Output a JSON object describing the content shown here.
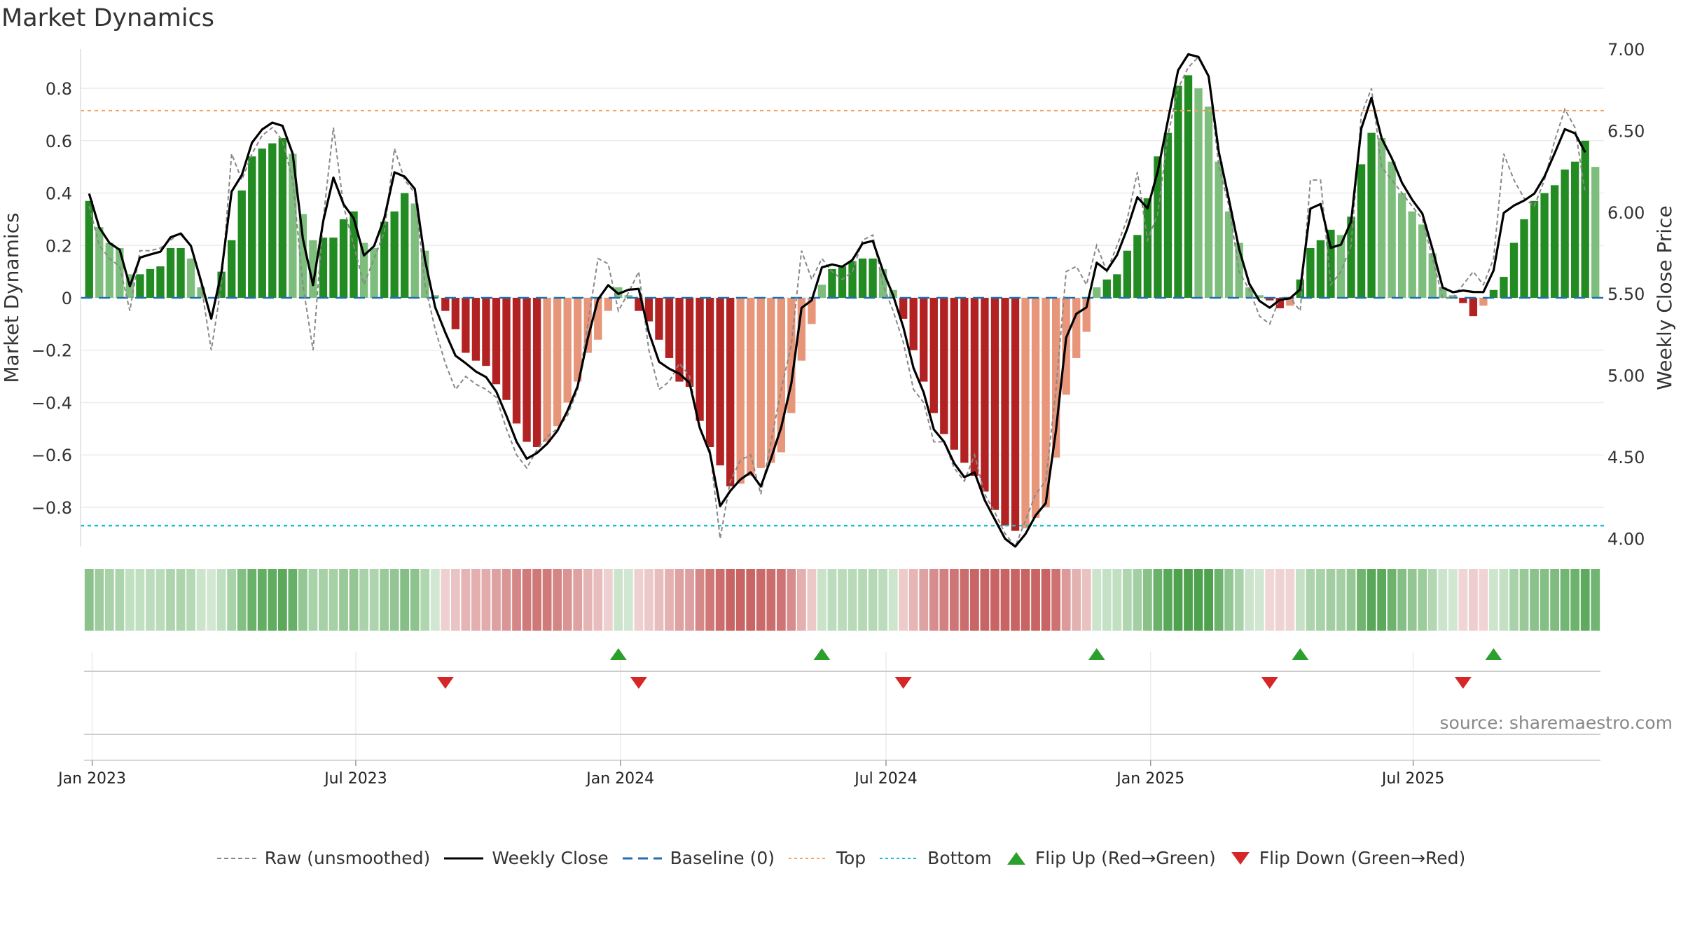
{
  "title": "Market Dynamics",
  "source": "source: sharemaestro.com",
  "colors": {
    "strong_green": "#228B22",
    "light_green": "#7DBE7D",
    "strong_red": "#B22222",
    "light_red": "#E8967A",
    "close_line": "#000000",
    "raw_line": "#888888",
    "baseline": "#1f6fb2",
    "top": "#f4a261",
    "bottom": "#17becf",
    "flip_up": "#2ca02c",
    "flip_down": "#d62728"
  },
  "legend": [
    {
      "label": "Raw (unsmoothed)",
      "icon": "dashed-gray-line"
    },
    {
      "label": "Weekly Close",
      "icon": "solid-black-line"
    },
    {
      "label": "Baseline (0)",
      "icon": "dashed-blue-line"
    },
    {
      "label": "Top",
      "icon": "dotted-orange-line"
    },
    {
      "label": "Bottom",
      "icon": "dotted-cyan-line"
    },
    {
      "label": "Flip Up (Red→Green)",
      "icon": "green-up-triangle"
    },
    {
      "label": "Flip Down (Green→Red)",
      "icon": "red-down-triangle"
    }
  ],
  "chart_data": {
    "type": "bar",
    "ylabel": "Market Dynamics",
    "y2label": "Weekly Close Price",
    "ylim": [
      -0.95,
      0.95
    ],
    "y2lim": [
      3.95,
      7.0
    ],
    "yticks": [
      "0.8",
      "0.6",
      "0.4",
      "0.2",
      "0",
      "−0.2",
      "−0.4",
      "−0.6",
      "−0.8"
    ],
    "y2ticks": [
      "7.00",
      "6.50",
      "6.00",
      "5.50",
      "5.00",
      "4.50",
      "4.00"
    ],
    "xticks": [
      "Jan 2023",
      "Jul 2023",
      "Jan 2024",
      "Jul 2024",
      "Jan 2025",
      "Jul 2025"
    ],
    "top_level": 0.715,
    "bottom_level": -0.87,
    "baseline": 0,
    "values": [
      0.37,
      0.27,
      0.21,
      0.19,
      0.09,
      0.09,
      0.11,
      0.12,
      0.19,
      0.19,
      0.15,
      0.04,
      0.0,
      0.1,
      0.22,
      0.41,
      0.54,
      0.57,
      0.59,
      0.61,
      0.55,
      0.32,
      0.22,
      0.23,
      0.23,
      0.3,
      0.33,
      0.21,
      0.19,
      0.29,
      0.33,
      0.4,
      0.36,
      0.18,
      0.01,
      -0.05,
      -0.12,
      -0.21,
      -0.24,
      -0.26,
      -0.33,
      -0.39,
      -0.48,
      -0.55,
      -0.57,
      -0.55,
      -0.49,
      -0.4,
      -0.32,
      -0.21,
      -0.16,
      -0.05,
      0.04,
      0.01,
      -0.05,
      -0.09,
      -0.16,
      -0.23,
      -0.32,
      -0.34,
      -0.47,
      -0.57,
      -0.64,
      -0.72,
      -0.71,
      -0.68,
      -0.65,
      -0.63,
      -0.59,
      -0.44,
      -0.24,
      -0.1,
      0.05,
      0.11,
      0.12,
      0.14,
      0.15,
      0.15,
      0.11,
      0.03,
      -0.08,
      -0.2,
      -0.32,
      -0.44,
      -0.52,
      -0.58,
      -0.63,
      -0.68,
      -0.74,
      -0.81,
      -0.87,
      -0.89,
      -0.88,
      -0.84,
      -0.8,
      -0.61,
      -0.37,
      -0.23,
      -0.13,
      0.04,
      0.07,
      0.09,
      0.18,
      0.24,
      0.38,
      0.54,
      0.63,
      0.81,
      0.85,
      0.8,
      0.73,
      0.52,
      0.33,
      0.21,
      0.04,
      0.01,
      -0.01,
      -0.04,
      -0.03,
      0.07,
      0.19,
      0.22,
      0.26,
      0.24,
      0.31,
      0.51,
      0.63,
      0.61,
      0.52,
      0.4,
      0.33,
      0.28,
      0.17,
      0.04,
      0.01,
      -0.02,
      -0.07,
      -0.03,
      0.03,
      0.08,
      0.21,
      0.3,
      0.37,
      0.4,
      0.43,
      0.49,
      0.52,
      0.6,
      0.5
    ],
    "raw": [
      0.35,
      0.2,
      0.15,
      0.12,
      -0.05,
      0.18,
      0.18,
      0.19,
      0.22,
      0.25,
      0.2,
      0.05,
      -0.2,
      0.05,
      0.55,
      0.45,
      0.55,
      0.62,
      0.65,
      0.6,
      0.45,
      0.05,
      -0.2,
      0.3,
      0.65,
      0.35,
      0.2,
      0.05,
      0.15,
      0.25,
      0.57,
      0.45,
      0.4,
      0.05,
      -0.12,
      -0.25,
      -0.35,
      -0.3,
      -0.33,
      -0.35,
      -0.38,
      -0.5,
      -0.6,
      -0.65,
      -0.58,
      -0.53,
      -0.5,
      -0.45,
      -0.35,
      -0.1,
      0.15,
      0.13,
      -0.05,
      0.02,
      0.1,
      -0.2,
      -0.35,
      -0.32,
      -0.25,
      -0.3,
      -0.5,
      -0.58,
      -0.92,
      -0.7,
      -0.62,
      -0.6,
      -0.75,
      -0.55,
      -0.35,
      -0.18,
      0.18,
      0.07,
      0.15,
      0.1,
      0.07,
      0.1,
      0.22,
      0.24,
      0.05,
      -0.05,
      -0.17,
      -0.35,
      -0.4,
      -0.55,
      -0.55,
      -0.65,
      -0.7,
      -0.6,
      -0.75,
      -0.82,
      -0.9,
      -0.95,
      -0.85,
      -0.75,
      -0.7,
      -0.35,
      0.1,
      0.12,
      0.05,
      0.2,
      0.1,
      0.2,
      0.3,
      0.48,
      0.22,
      0.32,
      0.62,
      0.8,
      0.88,
      0.92,
      0.85,
      0.5,
      0.35,
      0.1,
      0.03,
      -0.07,
      -0.1,
      0.0,
      0.0,
      -0.05,
      0.45,
      0.45,
      0.05,
      0.1,
      0.2,
      0.7,
      0.8,
      0.5,
      0.45,
      0.4,
      0.35,
      0.3,
      0.15,
      0.0,
      0.0,
      0.05,
      0.1,
      0.05,
      0.15,
      0.55,
      0.45,
      0.38,
      0.35,
      0.45,
      0.6,
      0.72,
      0.65,
      0.4
    ]
  }
}
